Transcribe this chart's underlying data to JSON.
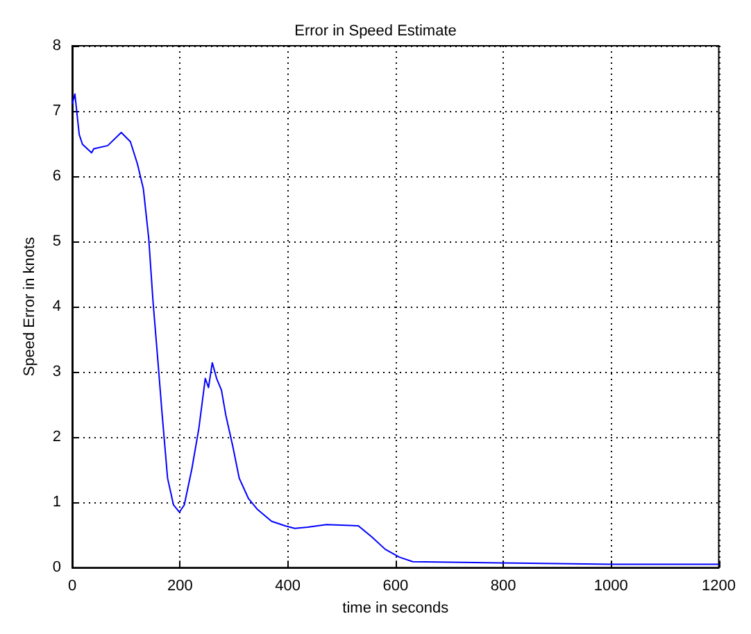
{
  "chart_data": {
    "type": "line",
    "title": "Error in Speed Estimate",
    "xlabel": "time in seconds",
    "ylabel": "Speed Error in knots",
    "x": [
      0,
      5,
      13,
      19,
      36,
      40,
      66,
      91,
      108,
      121,
      132,
      142,
      150,
      159,
      167,
      177,
      188,
      199,
      208,
      222,
      235,
      247,
      253,
      260,
      268,
      277,
      285,
      298,
      310,
      327,
      344,
      370,
      395,
      413,
      437,
      472,
      531,
      556,
      581,
      607,
      632,
      725,
      792,
      900,
      1000,
      1100,
      1200
    ],
    "series": [
      {
        "color": "#0000ff",
        "values": [
          7.1,
          7.26,
          6.64,
          6.49,
          6.36,
          6.42,
          6.47,
          6.67,
          6.53,
          6.19,
          5.81,
          5.05,
          4.08,
          3.17,
          2.34,
          1.37,
          0.96,
          0.85,
          0.96,
          1.51,
          2.13,
          2.9,
          2.76,
          3.14,
          2.9,
          2.72,
          2.34,
          1.86,
          1.37,
          1.06,
          0.89,
          0.71,
          0.64,
          0.6,
          0.62,
          0.66,
          0.64,
          0.47,
          0.28,
          0.16,
          0.09,
          0.08,
          0.07,
          0.06,
          0.05,
          0.05,
          0.05
        ]
      }
    ],
    "xlim": [
      0,
      1200
    ],
    "xticks": [
      0,
      200,
      400,
      600,
      800,
      1000,
      1200
    ],
    "ylim": [
      0,
      8
    ],
    "yticks": [
      0,
      1,
      2,
      3,
      4,
      5,
      6,
      7,
      8
    ],
    "grid": true,
    "marker": "none",
    "line_style": "solid"
  }
}
